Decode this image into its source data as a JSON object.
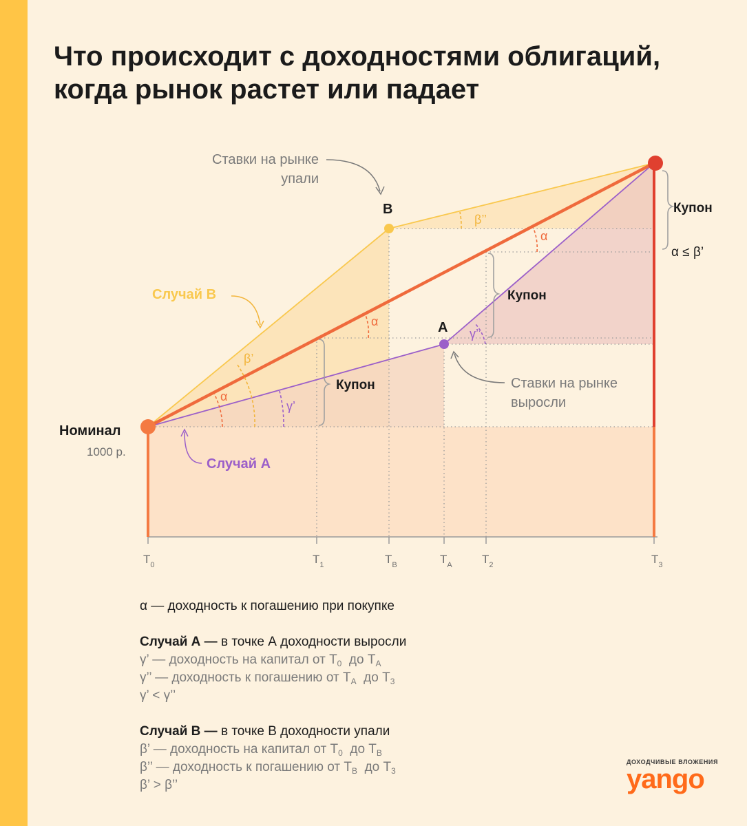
{
  "title": {
    "line1": "Что происходит с доходностями облигаций,",
    "line2": "когда рынок растет или падает"
  },
  "colors": {
    "background": "#fdf2df",
    "side_bar": "#ffc546",
    "main_line": "#ef6a3c",
    "maturity_line": "#e0402f",
    "case_a": "#9b5fc9",
    "case_b": "#f9c84e",
    "text_dark": "#1b1b1b",
    "text_grey": "#7a7a7a"
  },
  "diagram": {
    "nominal_label": "Номинал",
    "nominal_value": "1000 р.",
    "point_a_label": "A",
    "point_b_label": "B",
    "case_a_label": "Случай A",
    "case_b_label": "Случай B",
    "rates_fell_line1": "Ставки на рынке",
    "rates_fell_line2": "упали",
    "rates_rose_line1": "Ставки на рынке",
    "rates_rose_line2": "выросли",
    "coupon_label": "Купон",
    "coupon_label_2": "Купон",
    "coupon_label_3": "Купон",
    "alpha_le_beta": "α ≤ β’",
    "angle_alpha": "α",
    "angle_beta1": "β’",
    "angle_beta2": "β’’",
    "angle_gamma1": "γ’",
    "angle_gamma2": "γ’’",
    "axis_letter": "T",
    "ticks": [
      {
        "letter": "T",
        "sub": "0"
      },
      {
        "letter": "T",
        "sub": "1"
      },
      {
        "letter": "T",
        "sub": "B"
      },
      {
        "letter": "T",
        "sub": "A"
      },
      {
        "letter": "T",
        "sub": "2"
      },
      {
        "letter": "T",
        "sub": "3"
      }
    ]
  },
  "legend": {
    "alpha_def": "α — доходность к погашению при покупке",
    "case_a_head": "Случай А —",
    "case_a_text": " в точке А доходности выросли",
    "gamma1_text": "γ’ — доходность на капитал от T",
    "gamma2_text": "γ’’ — доходность к погашению от T",
    "gamma_relation": "γ’ < γ’’",
    "case_b_head": "Случай В —",
    "case_b_text": "  в точке В доходности упали",
    "beta1_text": "β’ — доходность на капитал от T",
    "beta2_text": "β’’ — доходность к погашению от T",
    "beta_relation": "β’ > β’’",
    "to": "до T",
    "sub_0": "0",
    "sub_a": "A",
    "sub_b": "B",
    "sub_3": "3"
  },
  "brand": {
    "tagline": "доходчивые вложения",
    "logo": "yango"
  }
}
